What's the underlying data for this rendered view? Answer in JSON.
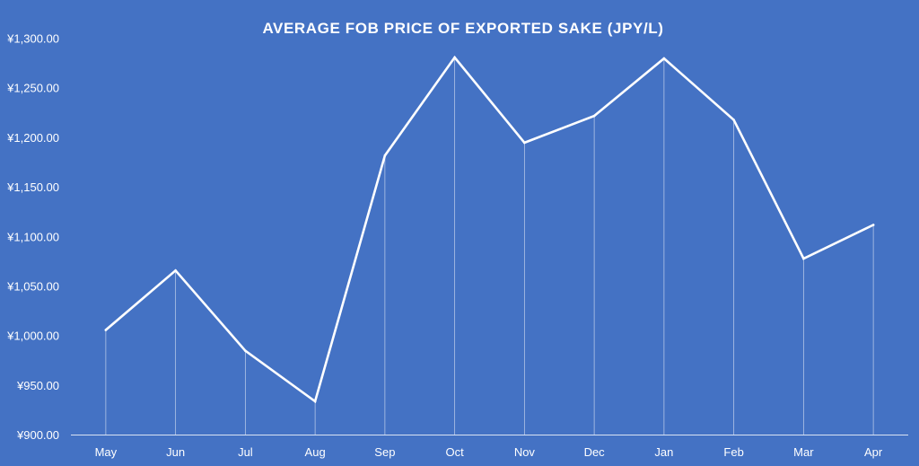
{
  "chart_data": {
    "type": "line",
    "title": "AVERAGE FOB PRICE OF EXPORTED SAKE  (JPY/L)",
    "xlabel": "",
    "ylabel": "",
    "categories": [
      "May",
      "Jun",
      "Jul",
      "Aug",
      "Sep",
      "Oct",
      "Nov",
      "Dec",
      "Jan",
      "Feb",
      "Mar",
      "Apr"
    ],
    "series": [
      {
        "values": [
          1006,
          1066,
          985,
          934,
          1182,
          1281,
          1195,
          1222,
          1280,
          1218,
          1078,
          1112
        ]
      }
    ],
    "ylim": [
      900,
      1300
    ],
    "yticks": [
      900,
      950,
      1000,
      1050,
      1100,
      1150,
      1200,
      1250,
      1300
    ],
    "ytick_labels": [
      "¥900.00",
      "¥950.00",
      "¥1,000.00",
      "¥1,050.00",
      "¥1,100.00",
      "¥1,150.00",
      "¥1,200.00",
      "¥1,250.00",
      "¥1,300.00"
    ],
    "grid": false,
    "drop_lines": true,
    "colors": {
      "background": "#4472C4",
      "line": "#FFFFFF",
      "drop_line": "#D9E2F3",
      "axis": "#D9E2F3",
      "text": "#FFFFFF"
    }
  }
}
